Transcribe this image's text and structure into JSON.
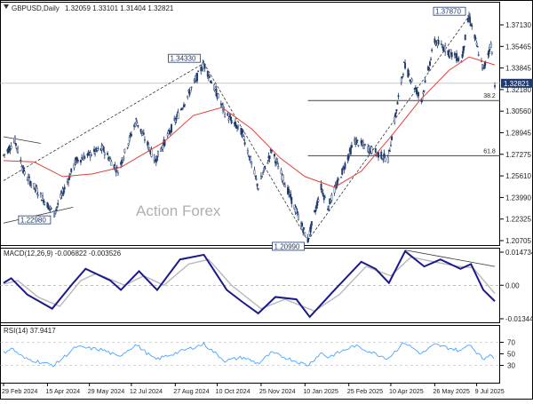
{
  "header": {
    "symbol": "GBPUSD,Daily",
    "ohlc": "1.32059 1.33101 1.31404 1.32821"
  },
  "watermark": "Action Forex",
  "colors": {
    "candle": "#1f3a6e",
    "sma": "#e0403a",
    "macd_main": "#1a1a8c",
    "macd_signal": "#b8b8b8",
    "rsi": "#4aa3ff",
    "fib": "#444444",
    "price_tag_bg": "#1f3a6e",
    "trend": "#333333"
  },
  "chart_data": [
    {
      "type": "candlestick",
      "name": "price",
      "x_start": "2024-02-29",
      "x_end": "2025-07-28",
      "ylim": [
        1.2065,
        1.3895
      ],
      "y_ticks": [
        "1.37130",
        "1.35465",
        "1.33845",
        "1.32180",
        "1.30560",
        "1.28945",
        "1.27275",
        "1.25610",
        "1.23990",
        "1.22325",
        "1.20705"
      ],
      "last_price": "1.32821",
      "anchors": [
        [
          "2024-02-29",
          1.274
        ],
        [
          "2024-03-12",
          1.285
        ],
        [
          "2024-03-22",
          1.26
        ],
        [
          "2024-04-22",
          1.23
        ],
        [
          "2024-05-15",
          1.27
        ],
        [
          "2024-06-12",
          1.279
        ],
        [
          "2024-06-28",
          1.262
        ],
        [
          "2024-07-17",
          1.3
        ],
        [
          "2024-08-06",
          1.27
        ],
        [
          "2024-09-26",
          1.343
        ],
        [
          "2024-10-18",
          1.306
        ],
        [
          "2024-11-06",
          1.29
        ],
        [
          "2024-11-22",
          1.25
        ],
        [
          "2024-12-06",
          1.278
        ],
        [
          "2025-01-13",
          1.21
        ],
        [
          "2025-01-27",
          1.25
        ],
        [
          "2025-02-03",
          1.235
        ],
        [
          "2025-03-03",
          1.285
        ],
        [
          "2025-04-07",
          1.271
        ],
        [
          "2025-04-24",
          1.342
        ],
        [
          "2025-05-12",
          1.315
        ],
        [
          "2025-05-26",
          1.36
        ],
        [
          "2025-06-23",
          1.345
        ],
        [
          "2025-07-01",
          1.3787
        ],
        [
          "2025-07-16",
          1.338
        ],
        [
          "2025-07-24",
          1.358
        ],
        [
          "2025-07-28",
          1.3282
        ]
      ],
      "sma": [
        [
          "2024-02-29",
          1.27
        ],
        [
          "2024-04-01",
          1.269
        ],
        [
          "2024-05-01",
          1.258
        ],
        [
          "2024-06-01",
          1.26
        ],
        [
          "2024-07-01",
          1.265
        ],
        [
          "2024-08-15",
          1.284
        ],
        [
          "2024-09-15",
          1.304
        ],
        [
          "2024-10-15",
          1.31
        ],
        [
          "2024-11-15",
          1.294
        ],
        [
          "2024-12-15",
          1.272
        ],
        [
          "2025-01-10",
          1.258
        ],
        [
          "2025-02-10",
          1.25
        ],
        [
          "2025-03-10",
          1.262
        ],
        [
          "2025-04-10",
          1.288
        ],
        [
          "2025-05-10",
          1.315
        ],
        [
          "2025-06-10",
          1.338
        ],
        [
          "2025-07-01",
          1.348
        ],
        [
          "2025-07-28",
          1.342
        ]
      ],
      "labels": [
        {
          "text": "1.22980",
          "date": "2024-04-22",
          "value": 1.2298
        },
        {
          "text": "1.34330",
          "date": "2024-09-26",
          "value": 1.3433
        },
        {
          "text": "1.20990",
          "date": "2025-01-13",
          "value": 1.2099
        },
        {
          "text": "1.37870",
          "date": "2025-07-01",
          "value": 1.3787
        }
      ],
      "fib_lines": [
        {
          "label": "38.2",
          "value": 1.3152,
          "from": "2025-01-13"
        },
        {
          "label": "61.8",
          "value": 1.2737,
          "from": "2025-01-13"
        }
      ],
      "trendlines": [
        {
          "from": [
            "2024-02-29",
            1.255
          ],
          "to": [
            "2024-09-26",
            1.3433
          ],
          "dashed": true
        },
        {
          "from": [
            "2024-09-26",
            1.3433
          ],
          "to": [
            "2025-01-13",
            1.2099
          ],
          "dashed": true
        },
        {
          "from": [
            "2025-01-13",
            1.2099
          ],
          "to": [
            "2025-07-01",
            1.3787
          ],
          "dashed": true
        },
        {
          "from": [
            "2024-02-29",
            1.288
          ],
          "to": [
            "2024-04-08",
            1.283
          ],
          "dashed": false
        },
        {
          "from": [
            "2024-02-29",
            1.223
          ],
          "to": [
            "2024-05-12",
            1.235
          ],
          "dashed": false
        }
      ]
    },
    {
      "type": "line",
      "name": "MACD(12,26,9)",
      "label": "MACD(12,26,9) -0.006822 -0.003526",
      "ylim": [
        -0.0158,
        0.016
      ],
      "y_ticks": [
        "0.014734",
        "0.00",
        "-0.013442"
      ],
      "zero_line": true,
      "main": [
        [
          "2024-02-29",
          0.001
        ],
        [
          "2024-03-08",
          0.003
        ],
        [
          "2024-03-25",
          -0.004
        ],
        [
          "2024-04-20",
          -0.01
        ],
        [
          "2024-05-10",
          0.0
        ],
        [
          "2024-05-25",
          0.007
        ],
        [
          "2024-06-20",
          0.002
        ],
        [
          "2024-07-01",
          -0.002
        ],
        [
          "2024-07-20",
          0.006
        ],
        [
          "2024-08-08",
          -0.002
        ],
        [
          "2024-09-01",
          0.011
        ],
        [
          "2024-09-26",
          0.013
        ],
        [
          "2024-10-20",
          -0.002
        ],
        [
          "2024-11-05",
          -0.007
        ],
        [
          "2024-11-22",
          -0.012
        ],
        [
          "2024-12-10",
          -0.005
        ],
        [
          "2025-01-01",
          -0.006
        ],
        [
          "2025-01-15",
          -0.0135
        ],
        [
          "2025-02-10",
          -0.002
        ],
        [
          "2025-03-10",
          0.01
        ],
        [
          "2025-03-25",
          0.007
        ],
        [
          "2025-04-08",
          0.001
        ],
        [
          "2025-04-25",
          0.0145
        ],
        [
          "2025-05-15",
          0.008
        ],
        [
          "2025-06-01",
          0.011
        ],
        [
          "2025-06-22",
          0.007
        ],
        [
          "2025-07-03",
          0.009
        ],
        [
          "2025-07-16",
          -0.002
        ],
        [
          "2025-07-28",
          -0.0068
        ]
      ],
      "signal": [
        [
          "2024-02-29",
          0.0005
        ],
        [
          "2024-03-15",
          0.002
        ],
        [
          "2024-04-05",
          -0.005
        ],
        [
          "2024-04-28",
          -0.009
        ],
        [
          "2024-05-20",
          0.002
        ],
        [
          "2024-06-05",
          0.005
        ],
        [
          "2024-07-05",
          0.0
        ],
        [
          "2024-07-25",
          0.004
        ],
        [
          "2024-08-15",
          0.0
        ],
        [
          "2024-09-10",
          0.009
        ],
        [
          "2024-10-01",
          0.011
        ],
        [
          "2024-10-25",
          0.0
        ],
        [
          "2024-11-25",
          -0.01
        ],
        [
          "2024-12-20",
          -0.006
        ],
        [
          "2025-01-20",
          -0.011
        ],
        [
          "2025-02-15",
          -0.004
        ],
        [
          "2025-03-15",
          0.008
        ],
        [
          "2025-04-10",
          0.004
        ],
        [
          "2025-05-01",
          0.012
        ],
        [
          "2025-05-25",
          0.01
        ],
        [
          "2025-06-20",
          0.008
        ],
        [
          "2025-07-05",
          0.0075
        ],
        [
          "2025-07-28",
          -0.0035
        ]
      ],
      "trendline": {
        "from": [
          "2025-04-25",
          0.015
        ],
        "to": [
          "2025-07-28",
          0.008
        ]
      }
    },
    {
      "type": "line",
      "name": "RSI(14)",
      "label": "RSI(14) 37.9417",
      "ylim": [
        0,
        100
      ],
      "y_ticks": [
        70,
        50,
        30
      ],
      "levels": [
        70,
        30
      ],
      "values": [
        [
          "2024-02-29",
          52
        ],
        [
          "2024-03-08",
          60
        ],
        [
          "2024-03-22",
          42
        ],
        [
          "2024-04-22",
          30
        ],
        [
          "2024-05-15",
          62
        ],
        [
          "2024-06-12",
          57
        ],
        [
          "2024-06-28",
          45
        ],
        [
          "2024-07-17",
          66
        ],
        [
          "2024-08-06",
          40
        ],
        [
          "2024-09-26",
          67
        ],
        [
          "2024-10-18",
          38
        ],
        [
          "2024-11-06",
          44
        ],
        [
          "2024-11-22",
          33
        ],
        [
          "2024-12-06",
          52
        ],
        [
          "2025-01-13",
          30
        ],
        [
          "2025-01-27",
          52
        ],
        [
          "2025-02-03",
          44
        ],
        [
          "2025-03-03",
          64
        ],
        [
          "2025-04-07",
          42
        ],
        [
          "2025-04-24",
          70
        ],
        [
          "2025-05-12",
          50
        ],
        [
          "2025-05-26",
          66
        ],
        [
          "2025-06-23",
          55
        ],
        [
          "2025-07-01",
          68
        ],
        [
          "2025-07-16",
          40
        ],
        [
          "2025-07-24",
          52
        ],
        [
          "2025-07-28",
          38
        ]
      ]
    }
  ],
  "x_axis": {
    "ticks": [
      {
        "label": "29 Feb 2024",
        "date": "2024-02-29"
      },
      {
        "label": "15 Apr 2024",
        "date": "2024-04-15"
      },
      {
        "label": "29 May 2024",
        "date": "2024-05-29"
      },
      {
        "label": "12 Jul 2024",
        "date": "2024-07-12"
      },
      {
        "label": "27 Aug 2024",
        "date": "2024-08-27"
      },
      {
        "label": "10 Oct 2024",
        "date": "2024-10-10"
      },
      {
        "label": "25 Nov 2024",
        "date": "2024-11-25"
      },
      {
        "label": "10 Jan 2025",
        "date": "2025-01-10"
      },
      {
        "label": "25 Feb 2025",
        "date": "2025-02-25"
      },
      {
        "label": "10 Apr 2025",
        "date": "2025-04-10"
      },
      {
        "label": "26 May 2025",
        "date": "2025-05-26"
      },
      {
        "label": "9 Jul 2025",
        "date": "2025-07-09"
      }
    ]
  }
}
